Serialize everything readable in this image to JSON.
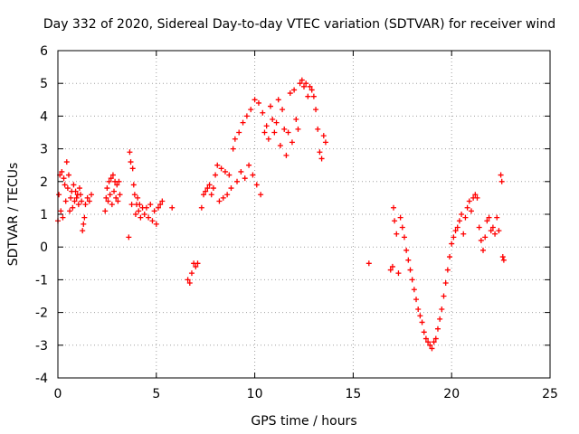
{
  "chart_data": {
    "type": "scatter",
    "title": "Day 332 of 2020, Sidereal Day-to-day VTEC variation (SDTVAR) for receiver wind",
    "xlabel": "GPS time / hours",
    "ylabel": "SDTVAR / TECUs",
    "xlim": [
      0,
      25
    ],
    "ylim": [
      -4,
      6
    ],
    "xticks": [
      0,
      5,
      10,
      15,
      20,
      25
    ],
    "yticks": [
      -4,
      -3,
      -2,
      -1,
      0,
      1,
      2,
      3,
      4,
      5,
      6
    ],
    "grid": true,
    "marker": "+",
    "series_color": "#ff0000",
    "series": [
      {
        "name": "SDTVAR",
        "points": [
          [
            0.0,
            0.8
          ],
          [
            0.05,
            1.6
          ],
          [
            0.1,
            2.2
          ],
          [
            0.15,
            1.1
          ],
          [
            0.2,
            2.3
          ],
          [
            0.25,
            0.9
          ],
          [
            0.3,
            2.1
          ],
          [
            0.35,
            1.9
          ],
          [
            0.4,
            1.4
          ],
          [
            0.45,
            2.6
          ],
          [
            0.5,
            1.8
          ],
          [
            0.55,
            2.2
          ],
          [
            0.6,
            1.1
          ],
          [
            0.65,
            1.5
          ],
          [
            0.7,
            1.7
          ],
          [
            0.75,
            1.2
          ],
          [
            0.8,
            1.9
          ],
          [
            0.85,
            1.4
          ],
          [
            0.9,
            1.7
          ],
          [
            0.95,
            1.5
          ],
          [
            1.0,
            1.6
          ],
          [
            1.05,
            1.3
          ],
          [
            1.1,
            1.8
          ],
          [
            1.15,
            1.6
          ],
          [
            1.2,
            1.4
          ],
          [
            1.25,
            0.5
          ],
          [
            1.3,
            0.7
          ],
          [
            1.35,
            0.9
          ],
          [
            1.4,
            1.3
          ],
          [
            1.5,
            1.5
          ],
          [
            1.6,
            1.4
          ],
          [
            1.7,
            1.6
          ],
          [
            2.4,
            1.1
          ],
          [
            2.45,
            1.5
          ],
          [
            2.5,
            1.8
          ],
          [
            2.55,
            1.4
          ],
          [
            2.6,
            2.0
          ],
          [
            2.65,
            1.6
          ],
          [
            2.7,
            2.1
          ],
          [
            2.75,
            1.3
          ],
          [
            2.8,
            2.2
          ],
          [
            2.85,
            1.7
          ],
          [
            2.9,
            2.0
          ],
          [
            2.95,
            1.5
          ],
          [
            3.0,
            1.9
          ],
          [
            3.05,
            1.4
          ],
          [
            3.1,
            2.0
          ],
          [
            3.15,
            1.6
          ],
          [
            3.6,
            0.3
          ],
          [
            3.65,
            2.9
          ],
          [
            3.7,
            2.6
          ],
          [
            3.75,
            1.3
          ],
          [
            3.8,
            2.4
          ],
          [
            3.85,
            1.9
          ],
          [
            3.9,
            1.6
          ],
          [
            3.95,
            1.0
          ],
          [
            4.0,
            1.3
          ],
          [
            4.05,
            1.5
          ],
          [
            4.1,
            1.1
          ],
          [
            4.15,
            1.3
          ],
          [
            4.2,
            0.9
          ],
          [
            4.3,
            1.2
          ],
          [
            4.4,
            1.0
          ],
          [
            4.5,
            1.2
          ],
          [
            4.6,
            0.9
          ],
          [
            4.7,
            1.3
          ],
          [
            4.8,
            0.8
          ],
          [
            4.9,
            1.1
          ],
          [
            5.0,
            0.7
          ],
          [
            5.1,
            1.2
          ],
          [
            5.2,
            1.3
          ],
          [
            5.3,
            1.4
          ],
          [
            5.8,
            1.2
          ],
          [
            6.6,
            -1.0
          ],
          [
            6.7,
            -1.1
          ],
          [
            6.8,
            -0.8
          ],
          [
            6.9,
            -0.5
          ],
          [
            7.0,
            -0.6
          ],
          [
            7.1,
            -0.5
          ],
          [
            7.3,
            1.2
          ],
          [
            7.4,
            1.6
          ],
          [
            7.5,
            1.7
          ],
          [
            7.6,
            1.8
          ],
          [
            7.7,
            1.9
          ],
          [
            7.8,
            1.6
          ],
          [
            7.9,
            1.8
          ],
          [
            8.0,
            2.2
          ],
          [
            8.1,
            2.5
          ],
          [
            8.2,
            1.4
          ],
          [
            8.3,
            2.4
          ],
          [
            8.4,
            1.5
          ],
          [
            8.5,
            2.3
          ],
          [
            8.6,
            1.6
          ],
          [
            8.7,
            2.2
          ],
          [
            8.8,
            1.8
          ],
          [
            8.9,
            3.0
          ],
          [
            9.0,
            3.3
          ],
          [
            9.1,
            2.0
          ],
          [
            9.2,
            3.5
          ],
          [
            9.3,
            2.3
          ],
          [
            9.4,
            3.8
          ],
          [
            9.5,
            2.1
          ],
          [
            9.6,
            4.0
          ],
          [
            9.7,
            2.5
          ],
          [
            9.8,
            4.2
          ],
          [
            9.9,
            2.2
          ],
          [
            10.0,
            4.5
          ],
          [
            10.1,
            1.9
          ],
          [
            10.2,
            4.4
          ],
          [
            10.3,
            1.6
          ],
          [
            10.4,
            4.1
          ],
          [
            10.5,
            3.5
          ],
          [
            10.6,
            3.7
          ],
          [
            10.7,
            3.3
          ],
          [
            10.8,
            4.3
          ],
          [
            10.9,
            3.9
          ],
          [
            11.0,
            3.5
          ],
          [
            11.1,
            3.8
          ],
          [
            11.2,
            4.5
          ],
          [
            11.3,
            3.1
          ],
          [
            11.4,
            4.2
          ],
          [
            11.5,
            3.6
          ],
          [
            11.6,
            2.8
          ],
          [
            11.7,
            3.5
          ],
          [
            11.8,
            4.7
          ],
          [
            11.9,
            3.2
          ],
          [
            12.0,
            4.8
          ],
          [
            12.1,
            3.9
          ],
          [
            12.2,
            3.6
          ],
          [
            12.3,
            5.0
          ],
          [
            12.4,
            5.1
          ],
          [
            12.5,
            4.9
          ],
          [
            12.6,
            5.0
          ],
          [
            12.7,
            4.6
          ],
          [
            12.8,
            4.9
          ],
          [
            12.9,
            4.8
          ],
          [
            13.0,
            4.6
          ],
          [
            13.1,
            4.2
          ],
          [
            13.2,
            3.6
          ],
          [
            13.3,
            2.9
          ],
          [
            13.4,
            2.7
          ],
          [
            13.5,
            3.4
          ],
          [
            13.6,
            3.2
          ],
          [
            15.8,
            -0.5
          ],
          [
            16.9,
            -0.7
          ],
          [
            17.0,
            -0.6
          ],
          [
            17.05,
            1.2
          ],
          [
            17.1,
            0.8
          ],
          [
            17.2,
            0.4
          ],
          [
            17.3,
            -0.8
          ],
          [
            17.4,
            0.9
          ],
          [
            17.5,
            0.6
          ],
          [
            17.6,
            0.3
          ],
          [
            17.7,
            -0.1
          ],
          [
            17.8,
            -0.4
          ],
          [
            17.9,
            -0.7
          ],
          [
            18.0,
            -1.0
          ],
          [
            18.1,
            -1.3
          ],
          [
            18.2,
            -1.6
          ],
          [
            18.3,
            -1.9
          ],
          [
            18.4,
            -2.1
          ],
          [
            18.5,
            -2.3
          ],
          [
            18.6,
            -2.6
          ],
          [
            18.7,
            -2.8
          ],
          [
            18.8,
            -2.9
          ],
          [
            18.9,
            -3.0
          ],
          [
            19.0,
            -3.1
          ],
          [
            19.1,
            -2.9
          ],
          [
            19.2,
            -2.8
          ],
          [
            19.3,
            -2.5
          ],
          [
            19.4,
            -2.2
          ],
          [
            19.5,
            -1.9
          ],
          [
            19.6,
            -1.5
          ],
          [
            19.7,
            -1.1
          ],
          [
            19.8,
            -0.7
          ],
          [
            19.9,
            -0.3
          ],
          [
            20.0,
            0.1
          ],
          [
            20.1,
            0.3
          ],
          [
            20.2,
            0.5
          ],
          [
            20.3,
            0.6
          ],
          [
            20.4,
            0.8
          ],
          [
            20.5,
            1.0
          ],
          [
            20.6,
            0.4
          ],
          [
            20.7,
            0.9
          ],
          [
            20.8,
            1.2
          ],
          [
            20.9,
            1.4
          ],
          [
            21.0,
            1.1
          ],
          [
            21.1,
            1.5
          ],
          [
            21.2,
            1.6
          ],
          [
            21.3,
            1.5
          ],
          [
            21.4,
            0.6
          ],
          [
            21.5,
            0.2
          ],
          [
            21.6,
            -0.1
          ],
          [
            21.7,
            0.3
          ],
          [
            21.8,
            0.8
          ],
          [
            21.9,
            0.9
          ],
          [
            22.0,
            0.5
          ],
          [
            22.1,
            0.6
          ],
          [
            22.2,
            0.4
          ],
          [
            22.3,
            0.9
          ],
          [
            22.4,
            0.5
          ],
          [
            22.5,
            2.2
          ],
          [
            22.55,
            2.0
          ],
          [
            22.6,
            -0.3
          ],
          [
            22.65,
            -0.4
          ]
        ]
      }
    ]
  }
}
